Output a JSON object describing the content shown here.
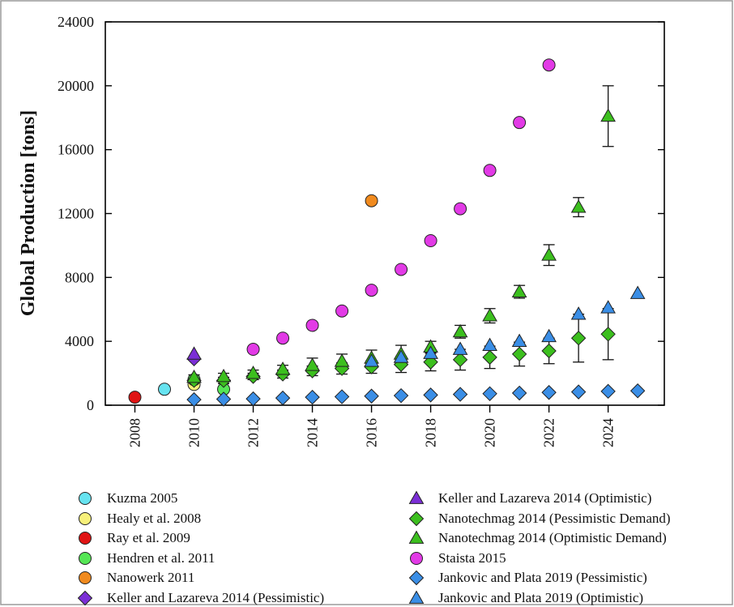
{
  "chart_data": {
    "type": "scatter",
    "title": "",
    "xlabel": "",
    "ylabel": "Global Production [tons]",
    "xlim": [
      2007,
      2025.9
    ],
    "ylim": [
      0,
      24000
    ],
    "x_ticks": [
      "2008",
      "2010",
      "2012",
      "2014",
      "2016",
      "2018",
      "2020",
      "2022",
      "2024"
    ],
    "y_ticks": [
      "0",
      "4000",
      "8000",
      "12000",
      "16000",
      "20000",
      "24000"
    ],
    "grid": false,
    "legend_position": "bottom",
    "series": [
      {
        "name": "Kuzma 2005",
        "marker": "circle",
        "color": "#66e3f0",
        "points": [
          {
            "x": 2009,
            "y": 1000
          }
        ]
      },
      {
        "name": "Healy et al. 2008",
        "marker": "circle",
        "color": "#f7f07a",
        "points": [
          {
            "x": 2010,
            "y": 1300
          }
        ]
      },
      {
        "name": "Ray et al. 2009",
        "marker": "circle",
        "color": "#e01414",
        "points": [
          {
            "x": 2008,
            "y": 500
          }
        ]
      },
      {
        "name": "Hendren et al. 2011",
        "marker": "circle",
        "color": "#55e655",
        "points": [
          {
            "x": 2010,
            "y": 1600
          },
          {
            "x": 2011,
            "y": 1000
          }
        ]
      },
      {
        "name": "Nanowerk 2011",
        "marker": "circle",
        "color": "#f08a1e",
        "points": [
          {
            "x": 2016,
            "y": 12800
          }
        ]
      },
      {
        "name": "Keller and Lazareva 2014 (Pessimistic)",
        "marker": "diamond",
        "color": "#7b2ed6",
        "points": [
          {
            "x": 2010,
            "y": 2900
          }
        ]
      },
      {
        "name": "Keller and Lazareva 2014 (Optimistic)",
        "marker": "triangle",
        "color": "#7b2ed6",
        "points": [
          {
            "x": 2010,
            "y": 3200
          }
        ]
      },
      {
        "name": "Nanotechmag 2014 (Pessimistic Demand)",
        "marker": "diamond",
        "color": "#3cbf1e",
        "points": [
          {
            "x": 2010,
            "y": 1550,
            "err": 150
          },
          {
            "x": 2011,
            "y": 1550,
            "err": 200
          },
          {
            "x": 2012,
            "y": 1800,
            "err": 200
          },
          {
            "x": 2013,
            "y": 1950,
            "err": 250
          },
          {
            "x": 2014,
            "y": 2150,
            "err": 300
          },
          {
            "x": 2015,
            "y": 2300,
            "err": 350
          },
          {
            "x": 2016,
            "y": 2400,
            "err": 400
          },
          {
            "x": 2017,
            "y": 2550,
            "err": 500
          },
          {
            "x": 2018,
            "y": 2700,
            "err": 550
          },
          {
            "x": 2019,
            "y": 2850,
            "err": 650
          },
          {
            "x": 2020,
            "y": 3000,
            "err": 700
          },
          {
            "x": 2021,
            "y": 3200,
            "err": 750
          },
          {
            "x": 2022,
            "y": 3400,
            "err": 800
          },
          {
            "x": 2023,
            "y": 4200,
            "err": 1500
          },
          {
            "x": 2024,
            "y": 4450,
            "err": 1600
          }
        ]
      },
      {
        "name": "Nanotechmag 2014 (Optimistic Demand)",
        "marker": "triangle",
        "color": "#3cbf1e",
        "points": [
          {
            "x": 2010,
            "y": 1750,
            "err": 150
          },
          {
            "x": 2011,
            "y": 1800,
            "err": 200
          },
          {
            "x": 2012,
            "y": 2000,
            "err": 200
          },
          {
            "x": 2013,
            "y": 2250,
            "err": 250
          },
          {
            "x": 2014,
            "y": 2500,
            "err": 450
          },
          {
            "x": 2015,
            "y": 2750,
            "err": 450
          },
          {
            "x": 2016,
            "y": 2950,
            "err": 500
          },
          {
            "x": 2017,
            "y": 3200,
            "err": 550
          },
          {
            "x": 2018,
            "y": 3650,
            "err": 350
          },
          {
            "x": 2019,
            "y": 4600,
            "err": 400
          },
          {
            "x": 2020,
            "y": 5600,
            "err": 450
          },
          {
            "x": 2021,
            "y": 7100,
            "err": 400
          },
          {
            "x": 2022,
            "y": 9400,
            "err": 650
          },
          {
            "x": 2023,
            "y": 12400,
            "err": 600
          },
          {
            "x": 2024,
            "y": 18100,
            "err": 1900
          }
        ]
      },
      {
        "name": "Staista 2015",
        "marker": "circle",
        "color": "#e23ae6",
        "points": [
          {
            "x": 2012,
            "y": 3500
          },
          {
            "x": 2013,
            "y": 4200
          },
          {
            "x": 2014,
            "y": 5000
          },
          {
            "x": 2015,
            "y": 5900
          },
          {
            "x": 2016,
            "y": 7200
          },
          {
            "x": 2017,
            "y": 8500
          },
          {
            "x": 2018,
            "y": 10300
          },
          {
            "x": 2019,
            "y": 12300
          },
          {
            "x": 2020,
            "y": 14700
          },
          {
            "x": 2021,
            "y": 17700
          },
          {
            "x": 2022,
            "y": 21300
          }
        ]
      },
      {
        "name": "Jankovic and Plata 2019 (Pessimistic)",
        "marker": "diamond",
        "color": "#3a8ee6",
        "points": [
          {
            "x": 2010,
            "y": 350
          },
          {
            "x": 2011,
            "y": 380
          },
          {
            "x": 2012,
            "y": 400
          },
          {
            "x": 2013,
            "y": 450
          },
          {
            "x": 2014,
            "y": 500
          },
          {
            "x": 2015,
            "y": 530
          },
          {
            "x": 2016,
            "y": 570
          },
          {
            "x": 2017,
            "y": 600
          },
          {
            "x": 2018,
            "y": 640
          },
          {
            "x": 2019,
            "y": 680
          },
          {
            "x": 2020,
            "y": 720
          },
          {
            "x": 2021,
            "y": 760
          },
          {
            "x": 2022,
            "y": 800
          },
          {
            "x": 2023,
            "y": 830
          },
          {
            "x": 2024,
            "y": 870
          },
          {
            "x": 2025,
            "y": 900
          }
        ]
      },
      {
        "name": "Jankovic and Plata 2019 (Optimistic)",
        "marker": "triangle",
        "color": "#3a8ee6",
        "points": [
          {
            "x": 2016,
            "y": 2750
          },
          {
            "x": 2017,
            "y": 3000
          },
          {
            "x": 2018,
            "y": 3250
          },
          {
            "x": 2019,
            "y": 3500
          },
          {
            "x": 2020,
            "y": 3750
          },
          {
            "x": 2021,
            "y": 4000
          },
          {
            "x": 2022,
            "y": 4300
          },
          {
            "x": 2023,
            "y": 5700
          },
          {
            "x": 2024,
            "y": 6100
          },
          {
            "x": 2025,
            "y": 7000
          }
        ]
      }
    ]
  }
}
